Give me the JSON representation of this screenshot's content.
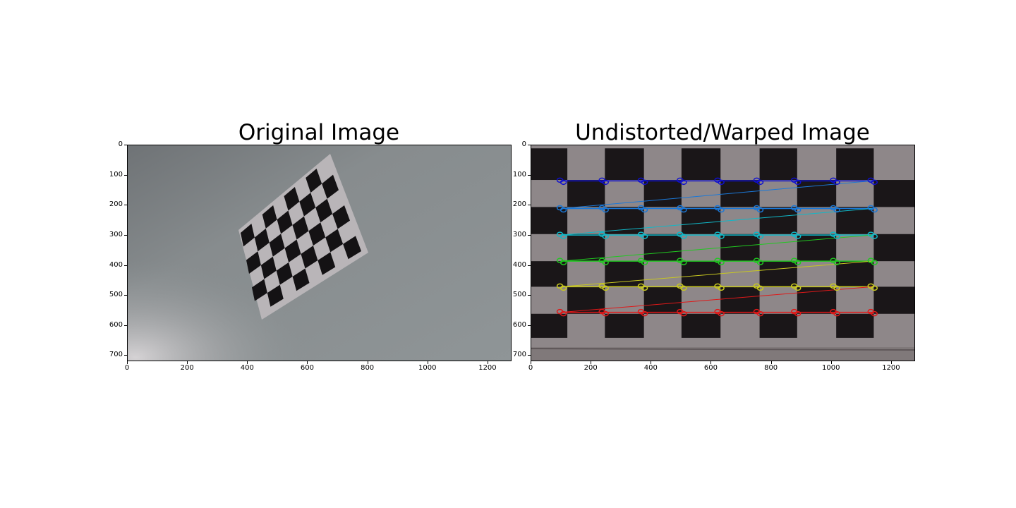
{
  "figure": {
    "left_panel": {
      "title": "Original Image",
      "x_ticks": [
        "0",
        "200",
        "400",
        "600",
        "800",
        "1000",
        "1200"
      ],
      "y_ticks": [
        "0",
        "100",
        "200",
        "300",
        "400",
        "500",
        "600",
        "700"
      ]
    },
    "right_panel": {
      "title": "Undistorted/Warped Image",
      "x_ticks": [
        "0",
        "200",
        "400",
        "600",
        "800",
        "1000",
        "1200"
      ],
      "y_ticks": [
        "0",
        "100",
        "200",
        "300",
        "400",
        "500",
        "600",
        "700"
      ]
    }
  },
  "colors": {
    "row_lines": [
      "#1010d0",
      "#1a78d8",
      "#10b8c8",
      "#20c820",
      "#c8c820",
      "#e01818"
    ]
  }
}
